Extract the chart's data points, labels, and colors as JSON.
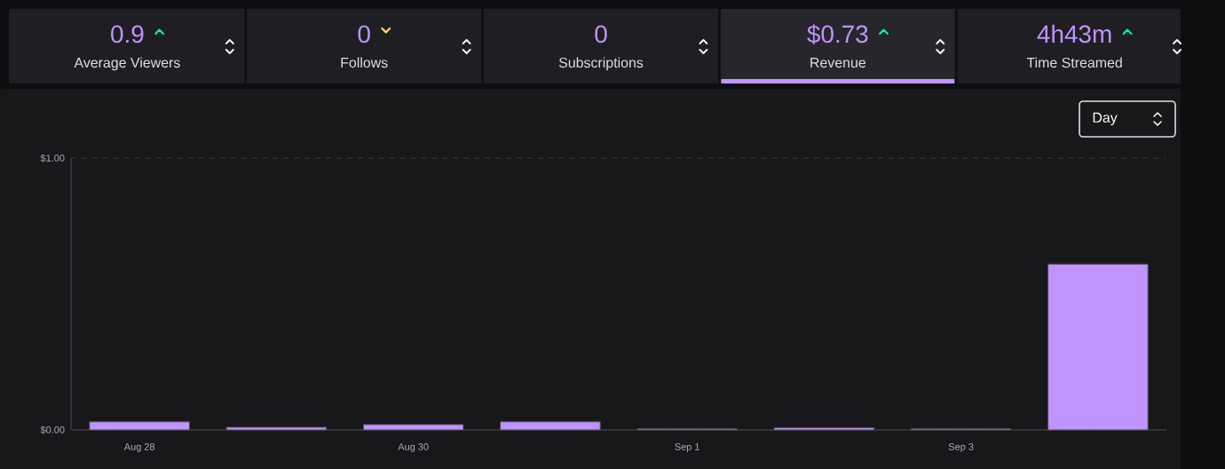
{
  "chart_data": [
    {
      "type": "other",
      "annotations": [
        "0.9",
        "Average Viewers",
        "0",
        "Follows",
        "0",
        "Subscriptions",
        "$0.73",
        "Revenue",
        "4h43m",
        "Time Streamed"
      ]
    },
    {
      "type": "bar",
      "categories": [
        "Aug 28",
        null,
        "Aug 30",
        null,
        "Sep 1",
        null,
        "Sep 3",
        null
      ],
      "values": [
        0.03,
        0.01,
        0.02,
        0.03,
        0.004,
        0.008,
        0.004,
        0.61
      ],
      "color": "#bf94ff",
      "ylim": [
        0,
        1
      ],
      "yticks": [
        {
          "value": 0,
          "label": "$0.00"
        },
        {
          "value": 1,
          "label": "$1.00"
        }
      ],
      "grid": "y",
      "annotations": [
        "Day"
      ]
    }
  ]
}
